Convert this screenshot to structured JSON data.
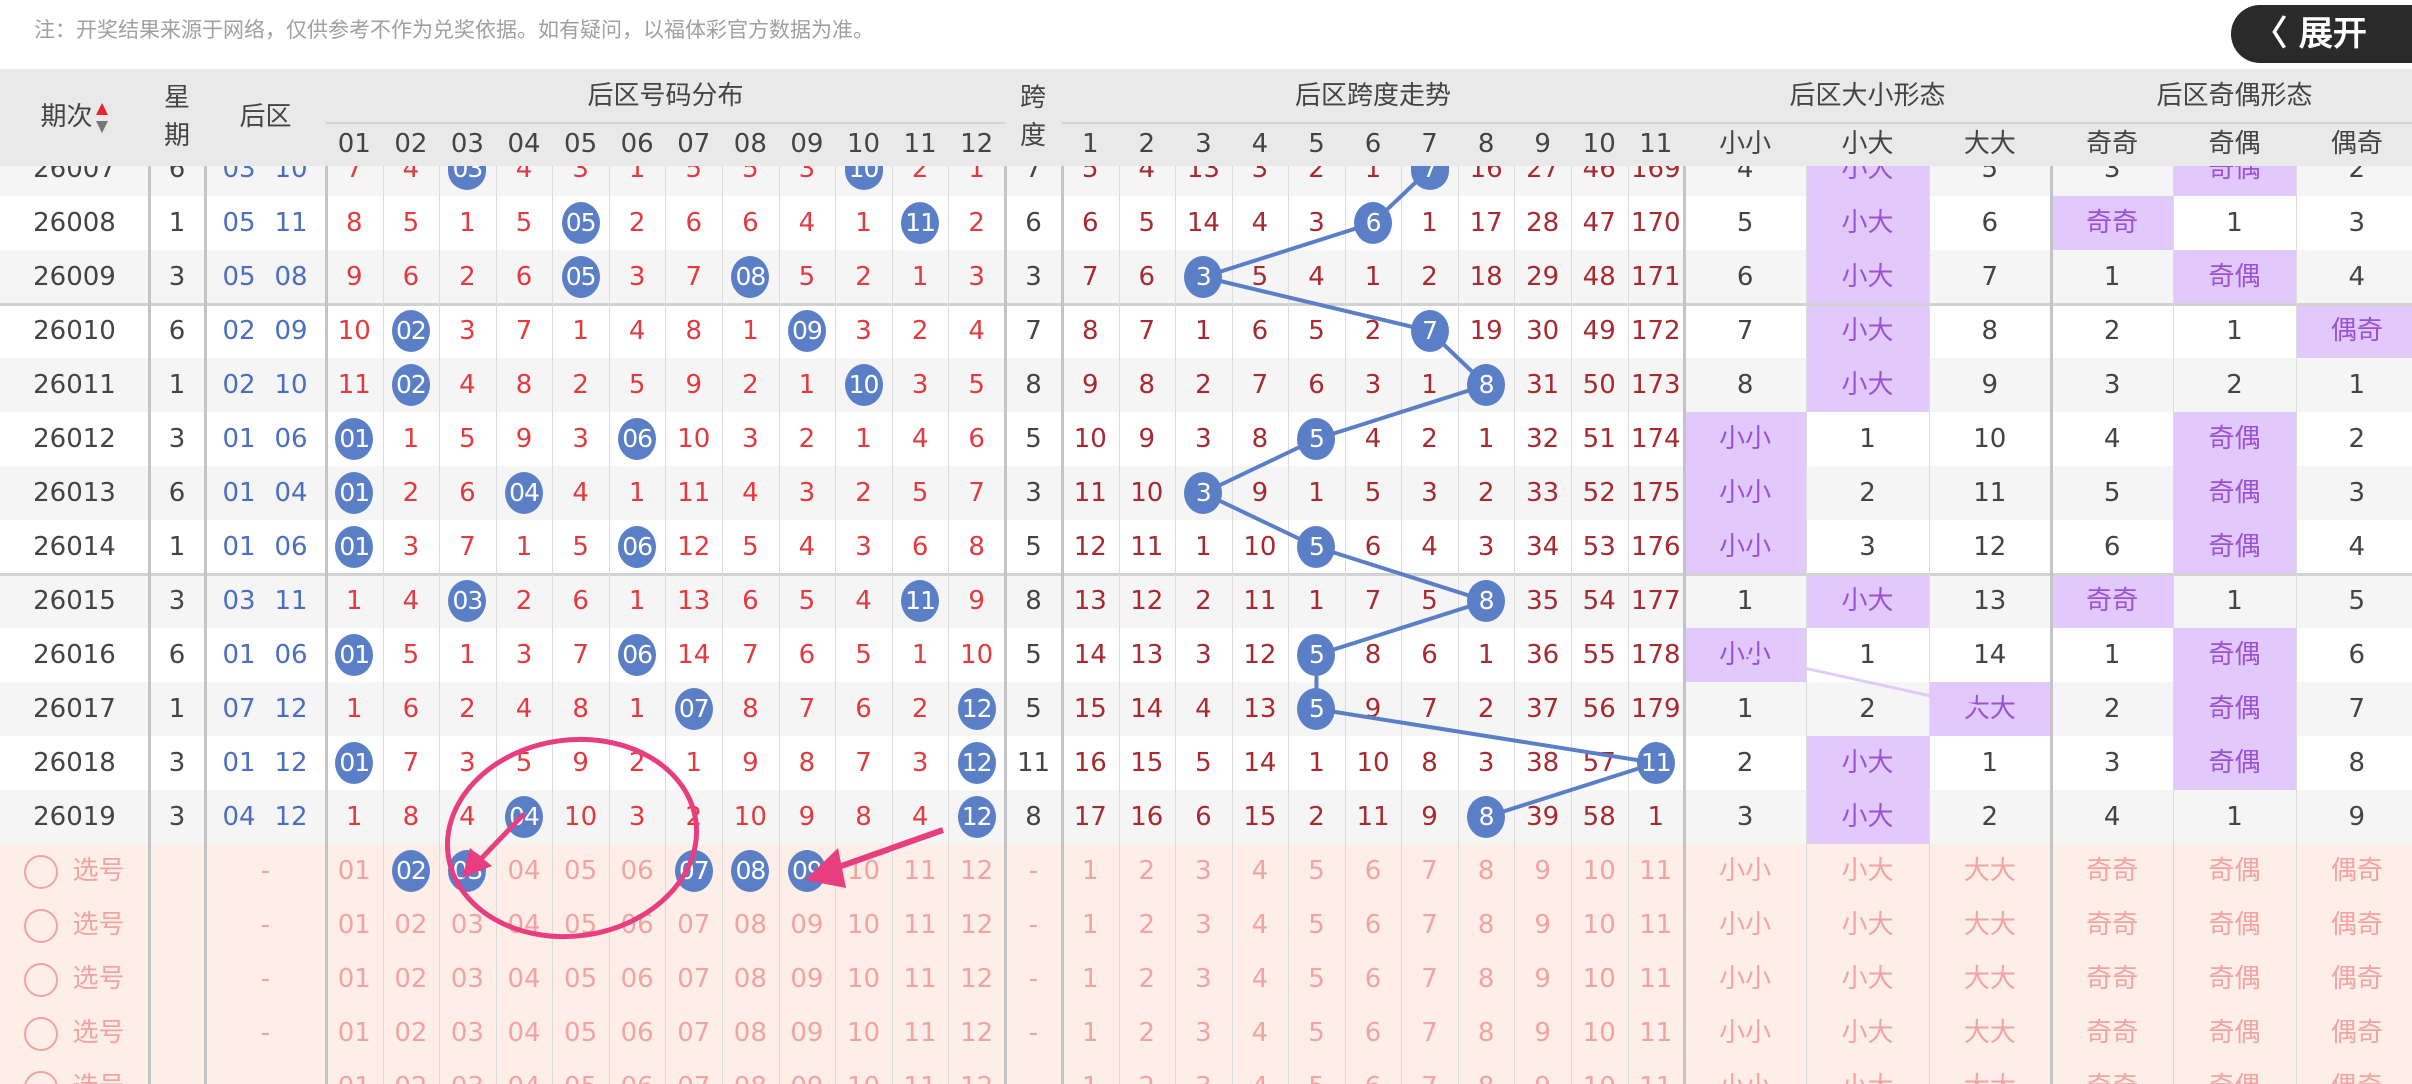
{
  "notice": "注：开奖结果来源于网络，仅供参考不作为兑奖依据。如有疑问，以福体彩官方数据为准。",
  "header": {
    "period": "期次",
    "weekday": "星期",
    "back": "后区",
    "span": "跨度"
  },
  "groups": {
    "dist": "后区号码分布",
    "span_trend": "后区跨度走势",
    "size": "后区大小形态",
    "parity": "后区奇偶形态"
  },
  "dist_cols": [
    "01",
    "02",
    "03",
    "04",
    "05",
    "06",
    "07",
    "08",
    "09",
    "10",
    "11",
    "12"
  ],
  "trend_cols": [
    "1",
    "2",
    "3",
    "4",
    "5",
    "6",
    "7",
    "8",
    "9",
    "10",
    "11"
  ],
  "size_cols": [
    "小小",
    "小大",
    "大大"
  ],
  "parity_cols": [
    "奇奇",
    "奇偶",
    "偶奇"
  ],
  "rows": [
    {
      "period": "26007",
      "weekday": "6",
      "back": [
        "03",
        "10"
      ],
      "dist": [
        "7",
        "4",
        "03",
        "4",
        "3",
        "1",
        "5",
        "5",
        "3",
        "10",
        "2",
        "1"
      ],
      "span": "7",
      "trend": [
        "5",
        "4",
        "13",
        "3",
        "2",
        "1",
        "7",
        "16",
        "27",
        "46",
        "169"
      ],
      "size": [
        "4",
        "小大",
        "5"
      ],
      "parity": [
        "3",
        "奇偶",
        "2"
      ]
    },
    {
      "period": "26008",
      "weekday": "1",
      "back": [
        "05",
        "11"
      ],
      "dist": [
        "8",
        "5",
        "1",
        "5",
        "05",
        "2",
        "6",
        "6",
        "4",
        "1",
        "11",
        "2"
      ],
      "span": "6",
      "trend": [
        "6",
        "5",
        "14",
        "4",
        "3",
        "6",
        "1",
        "17",
        "28",
        "47",
        "170"
      ],
      "size": [
        "5",
        "小大",
        "6"
      ],
      "parity": [
        "奇奇",
        "1",
        "3"
      ]
    },
    {
      "period": "26009",
      "weekday": "3",
      "back": [
        "05",
        "08"
      ],
      "dist": [
        "9",
        "6",
        "2",
        "6",
        "05",
        "3",
        "7",
        "08",
        "5",
        "2",
        "1",
        "3"
      ],
      "span": "3",
      "trend": [
        "7",
        "6",
        "3",
        "5",
        "4",
        "1",
        "2",
        "18",
        "29",
        "48",
        "171"
      ],
      "size": [
        "6",
        "小大",
        "7"
      ],
      "parity": [
        "1",
        "奇偶",
        "4"
      ]
    },
    {
      "period": "26010",
      "weekday": "6",
      "back": [
        "02",
        "09"
      ],
      "dist": [
        "10",
        "02",
        "3",
        "7",
        "1",
        "4",
        "8",
        "1",
        "09",
        "3",
        "2",
        "4"
      ],
      "span": "7",
      "trend": [
        "8",
        "7",
        "1",
        "6",
        "5",
        "2",
        "7",
        "19",
        "30",
        "49",
        "172"
      ],
      "size": [
        "7",
        "小大",
        "8"
      ],
      "parity": [
        "2",
        "1",
        "偶奇"
      ]
    },
    {
      "period": "26011",
      "weekday": "1",
      "back": [
        "02",
        "10"
      ],
      "dist": [
        "11",
        "02",
        "4",
        "8",
        "2",
        "5",
        "9",
        "2",
        "1",
        "10",
        "3",
        "5"
      ],
      "span": "8",
      "trend": [
        "9",
        "8",
        "2",
        "7",
        "6",
        "3",
        "1",
        "8",
        "31",
        "50",
        "173"
      ],
      "size": [
        "8",
        "小大",
        "9"
      ],
      "parity": [
        "3",
        "2",
        "1"
      ]
    },
    {
      "period": "26012",
      "weekday": "3",
      "back": [
        "01",
        "06"
      ],
      "dist": [
        "01",
        "1",
        "5",
        "9",
        "3",
        "06",
        "10",
        "3",
        "2",
        "1",
        "4",
        "6"
      ],
      "span": "5",
      "trend": [
        "10",
        "9",
        "3",
        "8",
        "5",
        "4",
        "2",
        "1",
        "32",
        "51",
        "174"
      ],
      "size": [
        "小小",
        "1",
        "10"
      ],
      "parity": [
        "4",
        "奇偶",
        "2"
      ]
    },
    {
      "period": "26013",
      "weekday": "6",
      "back": [
        "01",
        "04"
      ],
      "dist": [
        "01",
        "2",
        "6",
        "04",
        "4",
        "1",
        "11",
        "4",
        "3",
        "2",
        "5",
        "7"
      ],
      "span": "3",
      "trend": [
        "11",
        "10",
        "3",
        "9",
        "1",
        "5",
        "3",
        "2",
        "33",
        "52",
        "175"
      ],
      "size": [
        "小小",
        "2",
        "11"
      ],
      "parity": [
        "5",
        "奇偶",
        "3"
      ]
    },
    {
      "period": "26014",
      "weekday": "1",
      "back": [
        "01",
        "06"
      ],
      "dist": [
        "01",
        "3",
        "7",
        "1",
        "5",
        "06",
        "12",
        "5",
        "4",
        "3",
        "6",
        "8"
      ],
      "span": "5",
      "trend": [
        "12",
        "11",
        "1",
        "10",
        "5",
        "6",
        "4",
        "3",
        "34",
        "53",
        "176"
      ],
      "size": [
        "小小",
        "3",
        "12"
      ],
      "parity": [
        "6",
        "奇偶",
        "4"
      ]
    },
    {
      "period": "26015",
      "weekday": "3",
      "back": [
        "03",
        "11"
      ],
      "dist": [
        "1",
        "4",
        "03",
        "2",
        "6",
        "1",
        "13",
        "6",
        "5",
        "4",
        "11",
        "9"
      ],
      "span": "8",
      "trend": [
        "13",
        "12",
        "2",
        "11",
        "1",
        "7",
        "5",
        "8",
        "35",
        "54",
        "177"
      ],
      "size": [
        "1",
        "小大",
        "13"
      ],
      "parity": [
        "奇奇",
        "1",
        "5"
      ]
    },
    {
      "period": "26016",
      "weekday": "6",
      "back": [
        "01",
        "06"
      ],
      "dist": [
        "01",
        "5",
        "1",
        "3",
        "7",
        "06",
        "14",
        "7",
        "6",
        "5",
        "1",
        "10"
      ],
      "span": "5",
      "trend": [
        "14",
        "13",
        "3",
        "12",
        "5",
        "8",
        "6",
        "1",
        "36",
        "55",
        "178"
      ],
      "size": [
        "小小",
        "1",
        "14"
      ],
      "parity": [
        "1",
        "奇偶",
        "6"
      ]
    },
    {
      "period": "26017",
      "weekday": "1",
      "back": [
        "07",
        "12"
      ],
      "dist": [
        "1",
        "6",
        "2",
        "4",
        "8",
        "1",
        "07",
        "8",
        "7",
        "6",
        "2",
        "12"
      ],
      "span": "5",
      "trend": [
        "15",
        "14",
        "4",
        "13",
        "5",
        "9",
        "7",
        "2",
        "37",
        "56",
        "179"
      ],
      "size": [
        "1",
        "2",
        "大大"
      ],
      "parity": [
        "2",
        "奇偶",
        "7"
      ]
    },
    {
      "period": "26018",
      "weekday": "3",
      "back": [
        "01",
        "12"
      ],
      "dist": [
        "01",
        "7",
        "3",
        "5",
        "9",
        "2",
        "1",
        "9",
        "8",
        "7",
        "3",
        "12"
      ],
      "span": "11",
      "trend": [
        "16",
        "15",
        "5",
        "14",
        "1",
        "10",
        "8",
        "3",
        "38",
        "57",
        "11"
      ],
      "size": [
        "2",
        "小大",
        "1"
      ],
      "parity": [
        "3",
        "奇偶",
        "8"
      ]
    },
    {
      "period": "26019",
      "weekday": "3",
      "back": [
        "04",
        "12"
      ],
      "dist": [
        "1",
        "8",
        "4",
        "04",
        "10",
        "3",
        "2",
        "10",
        "9",
        "8",
        "4",
        "12"
      ],
      "span": "8",
      "trend": [
        "17",
        "16",
        "6",
        "15",
        "2",
        "11",
        "9",
        "8",
        "39",
        "58",
        "1"
      ],
      "size": [
        "3",
        "小大",
        "2"
      ],
      "parity": [
        "4",
        "1",
        "9"
      ]
    }
  ],
  "pick": {
    "label": "选号",
    "placeholder": "-",
    "rows": [
      {
        "selected": [
          "02",
          "03",
          "07",
          "08",
          "09"
        ]
      },
      {
        "selected": []
      },
      {
        "selected": []
      },
      {
        "selected": []
      },
      {
        "selected": []
      }
    ]
  },
  "expand_button": "〈 展开",
  "colors": {
    "ball": "#5b7fc7",
    "highlight": "#e2c9fc",
    "highlight_text": "#9a52d2",
    "annotation": "#e83e7f",
    "pick_bg": "#fdeee8",
    "sort_up": "#e8262b"
  }
}
